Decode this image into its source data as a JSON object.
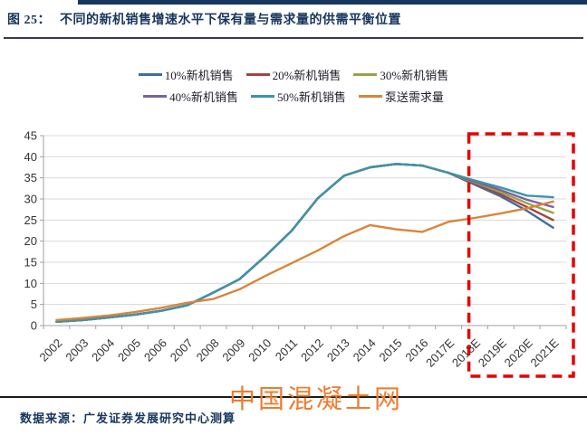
{
  "title": {
    "label": "图 25：",
    "text": "不同的新机销售增速水平下保有量与需求量的供需平衡位置"
  },
  "watermark": "中国混凝土网",
  "source": "数据来源：广发证券发展研究中心测算",
  "colors": {
    "title_navy": "#17365D",
    "grid": "#D9D9D9",
    "axis": "#A0A0A0",
    "tick_label": "#333333",
    "highlight_box": "#E60000",
    "watermark_orange": "#ED7D31"
  },
  "chart_data": {
    "type": "line",
    "title": "",
    "xlabel": "",
    "ylabel": "",
    "ylim": [
      0,
      45
    ],
    "yticks": [
      0,
      5,
      10,
      15,
      20,
      25,
      30,
      35,
      40,
      45
    ],
    "grid": true,
    "legend_position": "top",
    "categories": [
      "2002",
      "2003",
      "2004",
      "2005",
      "2006",
      "2007",
      "2008",
      "2009",
      "2010",
      "2011",
      "2012",
      "2013",
      "2014",
      "2015",
      "2016",
      "2017E",
      "2018E",
      "2019E",
      "2020E",
      "2021E"
    ],
    "series": [
      {
        "name": "10%新机销售",
        "color": "#3F6E9E",
        "values": [
          0.9,
          1.3,
          1.9,
          2.6,
          3.5,
          4.8,
          7.8,
          11.0,
          16.5,
          22.5,
          30.2,
          35.5,
          37.5,
          38.3,
          37.9,
          36.2,
          33.4,
          30.6,
          27.2,
          23.2
        ]
      },
      {
        "name": "20%新机销售",
        "color": "#A8423F",
        "values": [
          0.9,
          1.3,
          1.9,
          2.6,
          3.5,
          4.8,
          7.8,
          11.0,
          16.5,
          22.5,
          30.2,
          35.5,
          37.5,
          38.3,
          37.9,
          36.2,
          33.7,
          31.1,
          28.1,
          25.0
        ]
      },
      {
        "name": "30%新机销售",
        "color": "#94A545",
        "values": [
          0.9,
          1.3,
          1.9,
          2.6,
          3.5,
          4.8,
          7.8,
          11.0,
          16.5,
          22.5,
          30.2,
          35.5,
          37.5,
          38.3,
          37.9,
          36.2,
          33.9,
          31.6,
          29.0,
          26.7
        ]
      },
      {
        "name": "40%新机销售",
        "color": "#7A62A0",
        "values": [
          0.9,
          1.3,
          1.9,
          2.6,
          3.5,
          4.8,
          7.8,
          11.0,
          16.5,
          22.5,
          30.2,
          35.5,
          37.5,
          38.3,
          37.9,
          36.2,
          34.1,
          32.1,
          29.8,
          28.1
        ]
      },
      {
        "name": "50%新机销售",
        "color": "#3E93A8",
        "values": [
          0.9,
          1.3,
          1.9,
          2.6,
          3.5,
          4.8,
          7.8,
          11.0,
          16.5,
          22.5,
          30.2,
          35.5,
          37.5,
          38.3,
          37.9,
          36.2,
          34.4,
          32.7,
          30.8,
          30.4
        ]
      },
      {
        "name": "泵送需求量",
        "color": "#D9853B",
        "values": [
          1.3,
          1.8,
          2.4,
          3.2,
          4.2,
          5.4,
          6.3,
          8.6,
          11.8,
          14.8,
          17.8,
          21.2,
          23.8,
          22.8,
          22.2,
          24.6,
          25.5,
          26.6,
          27.8,
          29.4
        ]
      }
    ],
    "highlight_box": {
      "from_category": "2018E",
      "to_category": "2021E",
      "style": "dashed",
      "color": "#E60000"
    }
  }
}
